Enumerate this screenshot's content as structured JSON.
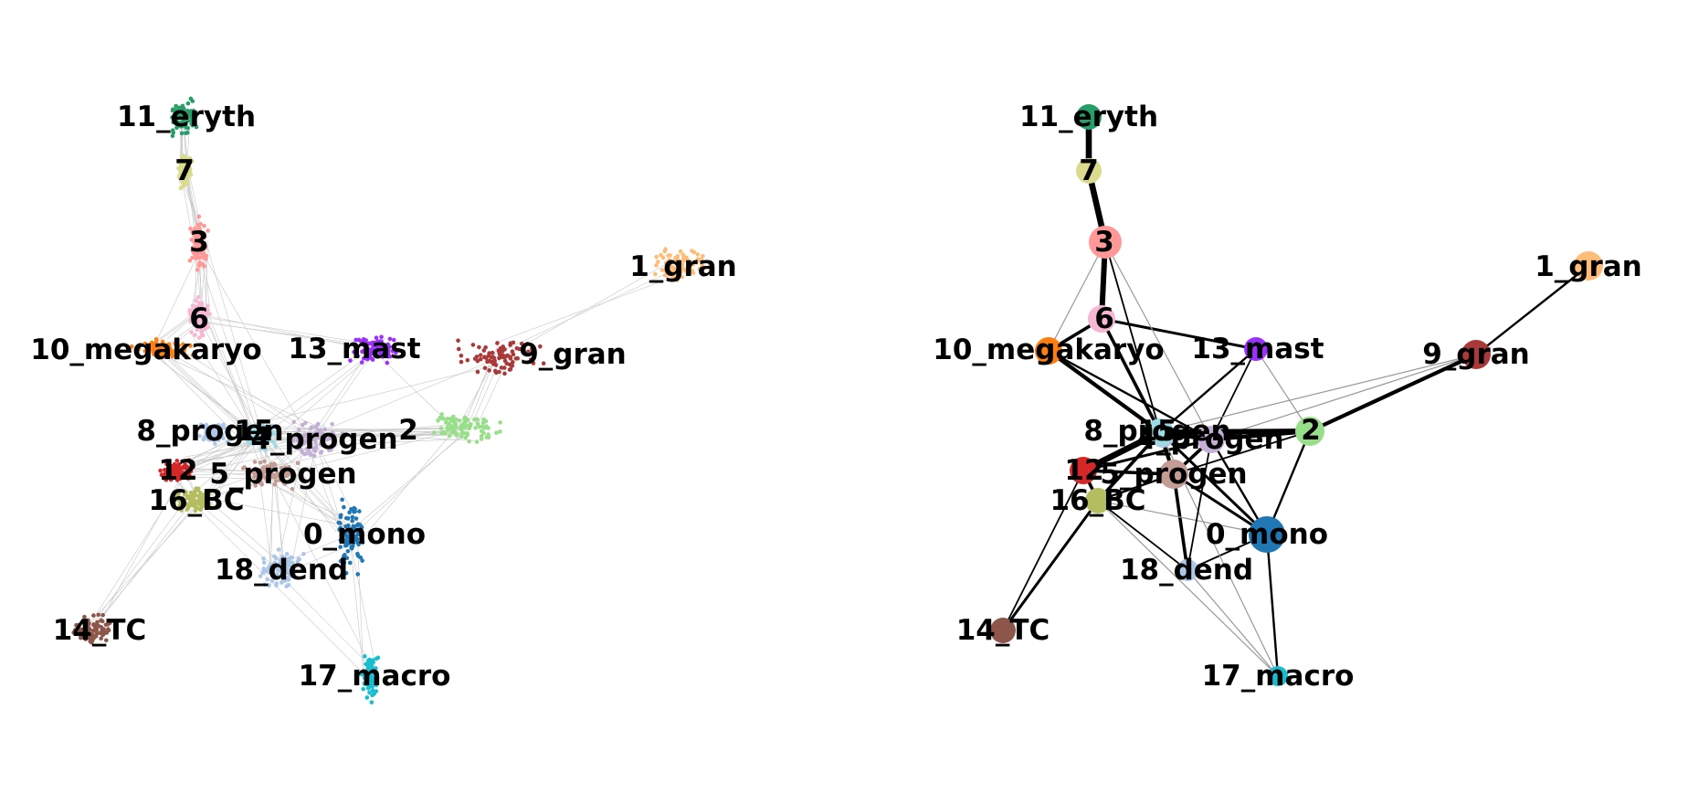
{
  "clusters": [
    {
      "id": "11_eryth",
      "label": "11_eryth",
      "color": "#279e68"
    },
    {
      "id": "7",
      "label": "7",
      "color": "#dbdb8d"
    },
    {
      "id": "3",
      "label": "3",
      "color": "#ff9896"
    },
    {
      "id": "6",
      "label": "6",
      "color": "#f7b6d2"
    },
    {
      "id": "10_megakaryo",
      "label": "10_megakaryo",
      "color": "#ff7f0e"
    },
    {
      "id": "13_mast",
      "label": "13_mast",
      "color": "#9b30ff"
    },
    {
      "id": "1_gran",
      "label": "1_gran",
      "color": "#ffbb78"
    },
    {
      "id": "9_gran",
      "label": "9_gran",
      "color": "#aa3939"
    },
    {
      "id": "2",
      "label": "2",
      "color": "#98df8a"
    },
    {
      "id": "8_progen",
      "label": "8_progen",
      "color": "#aec7e8"
    },
    {
      "id": "15",
      "label": "15",
      "color": "#9edae5"
    },
    {
      "id": "4_progen",
      "label": "4_progen",
      "color": "#c5b0d5"
    },
    {
      "id": "12",
      "label": "12",
      "color": "#d62728"
    },
    {
      "id": "5_progen",
      "label": "5_progen",
      "color": "#c49c94"
    },
    {
      "id": "16_BC",
      "label": "16_BC",
      "color": "#b5bd61"
    },
    {
      "id": "0_mono",
      "label": "0_mono",
      "color": "#1f77b4"
    },
    {
      "id": "18_dend",
      "label": "18_dend",
      "color": "#aec7e8"
    },
    {
      "id": "14_TC",
      "label": "14_TC",
      "color": "#8c564b"
    },
    {
      "id": "17_macro",
      "label": "17_macro",
      "color": "#17becf"
    }
  ],
  "paga_edges": [
    {
      "a": "11_eryth",
      "b": "7",
      "weight": 1.0
    },
    {
      "a": "7",
      "b": "3",
      "weight": 1.0
    },
    {
      "a": "3",
      "b": "6",
      "weight": 0.9
    },
    {
      "a": "6",
      "b": "10_megakaryo",
      "weight": 0.5
    },
    {
      "a": "6",
      "b": "13_mast",
      "weight": 0.4
    },
    {
      "a": "6",
      "b": "15",
      "weight": 0.5
    },
    {
      "a": "3",
      "b": "15",
      "weight": 0.2
    },
    {
      "a": "3",
      "b": "4_progen",
      "weight": 0.1
    },
    {
      "a": "3",
      "b": "10_megakaryo",
      "weight": 0.1
    },
    {
      "a": "10_megakaryo",
      "b": "15",
      "weight": 0.6
    },
    {
      "a": "10_megakaryo",
      "b": "4_progen",
      "weight": 0.3
    },
    {
      "a": "13_mast",
      "b": "15",
      "weight": 0.3
    },
    {
      "a": "13_mast",
      "b": "4_progen",
      "weight": 0.2
    },
    {
      "a": "13_mast",
      "b": "2",
      "weight": 0.1
    },
    {
      "a": "1_gran",
      "b": "9_gran",
      "weight": 0.3
    },
    {
      "a": "9_gran",
      "b": "2",
      "weight": 0.6
    },
    {
      "a": "9_gran",
      "b": "4_progen",
      "weight": 0.1
    },
    {
      "a": "9_gran",
      "b": "15",
      "weight": 0.1
    },
    {
      "a": "2",
      "b": "15",
      "weight": 0.9
    },
    {
      "a": "2",
      "b": "4_progen",
      "weight": 0.6
    },
    {
      "a": "2",
      "b": "0_mono",
      "weight": 0.3
    },
    {
      "a": "2",
      "b": "5_progen",
      "weight": 0.2
    },
    {
      "a": "15",
      "b": "4_progen",
      "weight": 0.7
    },
    {
      "a": "15",
      "b": "12",
      "weight": 1.0
    },
    {
      "a": "15",
      "b": "5_progen",
      "weight": 0.6
    },
    {
      "a": "15",
      "b": "16_BC",
      "weight": 0.5
    },
    {
      "a": "15",
      "b": "0_mono",
      "weight": 0.4
    },
    {
      "a": "4_progen",
      "b": "5_progen",
      "weight": 0.5
    },
    {
      "a": "4_progen",
      "b": "0_mono",
      "weight": 0.3
    },
    {
      "a": "4_progen",
      "b": "12",
      "weight": 0.4
    },
    {
      "a": "5_progen",
      "b": "12",
      "weight": 0.5
    },
    {
      "a": "5_progen",
      "b": "0_mono",
      "weight": 0.4
    },
    {
      "a": "5_progen",
      "b": "18_dend",
      "weight": 0.5
    },
    {
      "a": "5_progen",
      "b": "16_BC",
      "weight": 0.3
    },
    {
      "a": "12",
      "b": "16_BC",
      "weight": 0.5
    },
    {
      "a": "16_BC",
      "b": "14_TC",
      "weight": 0.4
    },
    {
      "a": "12",
      "b": "14_TC",
      "weight": 0.2
    },
    {
      "a": "16_BC",
      "b": "18_dend",
      "weight": 0.2
    },
    {
      "a": "16_BC",
      "b": "0_mono",
      "weight": 0.1
    },
    {
      "a": "0_mono",
      "b": "17_macro",
      "weight": 0.3
    },
    {
      "a": "0_mono",
      "b": "18_dend",
      "weight": 0.2
    },
    {
      "a": "16_BC",
      "b": "17_macro",
      "weight": 0.1
    },
    {
      "a": "18_dend",
      "b": "17_macro",
      "weight": 0.1
    },
    {
      "a": "15",
      "b": "17_macro",
      "weight": 0.1
    },
    {
      "a": "4_progen",
      "b": "18_dend",
      "weight": 0.2
    }
  ]
}
